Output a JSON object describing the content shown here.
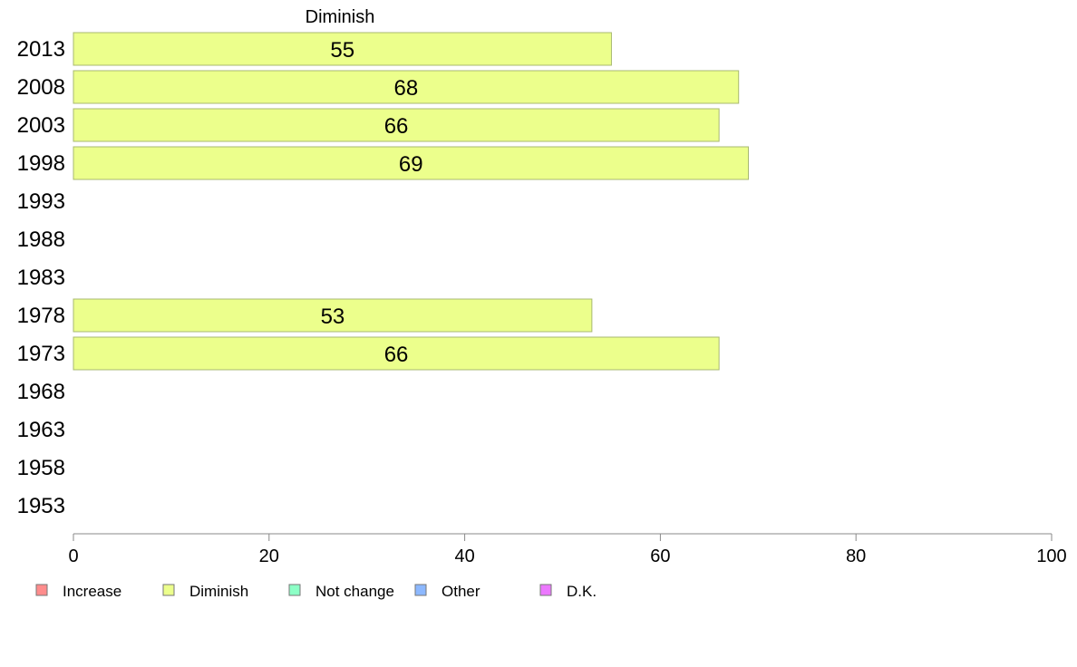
{
  "chart_data": {
    "type": "bar",
    "orientation": "horizontal",
    "column_title": "Diminish",
    "categories": [
      "2013",
      "2008",
      "2003",
      "1998",
      "1993",
      "1988",
      "1983",
      "1978",
      "1973",
      "1968",
      "1963",
      "1958",
      "1953"
    ],
    "series": [
      {
        "name": "Diminish",
        "values": [
          55,
          68,
          66,
          69,
          null,
          null,
          null,
          53,
          66,
          null,
          null,
          null,
          null
        ]
      }
    ],
    "xlim": [
      0,
      100
    ],
    "xticks": [
      0,
      20,
      40,
      60,
      80,
      100
    ],
    "xlabel": "",
    "ylabel": "",
    "grid": false,
    "legend_position": "bottom",
    "legend": [
      {
        "label": "Increase",
        "color": "#ff8c8c"
      },
      {
        "label": "Diminish",
        "color": "#ecff8c"
      },
      {
        "label": "Not change",
        "color": "#8cffc6"
      },
      {
        "label": "Other",
        "color": "#8cb8ff"
      },
      {
        "label": "D.K.",
        "color": "#ec78ff"
      }
    ],
    "bar_color": "#ecff8c",
    "bar_edge_color": "#a8b870"
  }
}
